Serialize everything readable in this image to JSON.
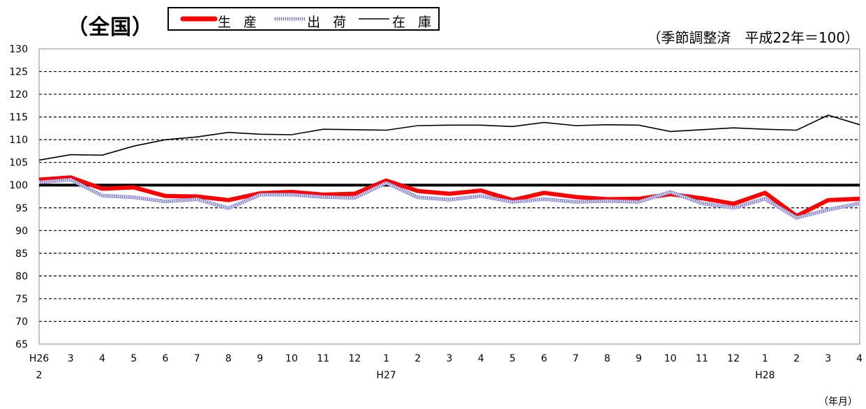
{
  "header": {
    "title": "（全国）",
    "note": "（季節調整済　平成22年＝100）",
    "unit": "（年月）"
  },
  "legend": {
    "production": "生 産",
    "shipment": "出 荷",
    "inventory": "在 庫"
  },
  "colors": {
    "production": "#ff0000",
    "shipment": "#8080d0",
    "inventory": "#000000",
    "baseline": "#000000"
  },
  "chart_data": {
    "type": "line",
    "ylim": [
      65,
      130
    ],
    "yticks": [
      65,
      70,
      75,
      80,
      85,
      90,
      95,
      100,
      105,
      110,
      115,
      120,
      125,
      130
    ],
    "baseline": 100,
    "grid": "dashed horizontal",
    "categories": [
      "H26 2",
      "3",
      "4",
      "5",
      "6",
      "7",
      "8",
      "9",
      "10",
      "11",
      "12",
      "H27 1",
      "2",
      "3",
      "4",
      "5",
      "6",
      "7",
      "8",
      "9",
      "10",
      "11",
      "12",
      "H28 1",
      "2",
      "3",
      "4"
    ],
    "xtick_labels": [
      "H26",
      "3",
      "4",
      "5",
      "6",
      "7",
      "8",
      "9",
      "10",
      "11",
      "12",
      "1",
      "2",
      "3",
      "4",
      "5",
      "6",
      "7",
      "8",
      "9",
      "10",
      "11",
      "12",
      "1",
      "2",
      "3",
      "4"
    ],
    "year_labels": [
      {
        "index": 0,
        "label": "2"
      },
      {
        "index": 11,
        "label": "H27"
      },
      {
        "index": 23,
        "label": "H28"
      }
    ],
    "series": [
      {
        "name": "在 庫",
        "key": "inventory",
        "values": [
          105.5,
          106.7,
          106.6,
          108.6,
          110.0,
          110.6,
          111.6,
          111.2,
          111.1,
          112.3,
          112.2,
          112.1,
          113.1,
          113.2,
          113.2,
          112.9,
          113.8,
          113.1,
          113.3,
          113.2,
          111.8,
          112.2,
          112.6,
          112.3,
          112.1,
          115.4,
          113.3
        ]
      },
      {
        "name": "生 産",
        "key": "production",
        "values": [
          101.2,
          101.7,
          99.2,
          99.5,
          97.6,
          97.5,
          96.7,
          98.2,
          98.5,
          97.9,
          98.1,
          101.0,
          98.7,
          98.1,
          98.8,
          96.7,
          98.3,
          97.4,
          96.9,
          97.0,
          98.0,
          97.1,
          95.9,
          98.3,
          93.2,
          96.7,
          97.0
        ]
      },
      {
        "name": "出 荷",
        "key": "shipment",
        "values": [
          100.6,
          101.2,
          97.7,
          97.3,
          96.4,
          96.9,
          94.9,
          97.9,
          97.9,
          97.4,
          97.2,
          100.5,
          97.3,
          96.8,
          97.6,
          96.3,
          96.9,
          96.3,
          96.5,
          96.3,
          98.5,
          96.0,
          95.0,
          97.0,
          92.8,
          94.6,
          96.0
        ]
      }
    ]
  }
}
